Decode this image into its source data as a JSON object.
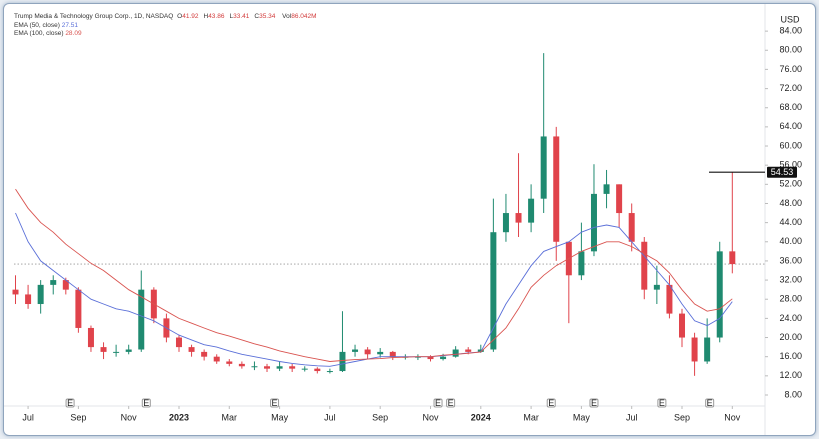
{
  "chart_data": {
    "type": "candlestick",
    "header": {
      "symbol": "Trump Media & Technology Group Corp., 1D, NASDAQ",
      "ohlc": [
        {
          "label": "O",
          "value": 41.92
        },
        {
          "label": "H",
          "value": 43.86
        },
        {
          "label": "L",
          "value": 33.41
        },
        {
          "label": "C",
          "value": 35.34
        }
      ],
      "volume_label": "Vol",
      "volume": "86.042M"
    },
    "y_unit": "USD",
    "x": [
      -0.5,
      0,
      0.5,
      1,
      1.5,
      2,
      2.5,
      3,
      3.5,
      4,
      4.5,
      5,
      5.5,
      6,
      6.5,
      7,
      7.5,
      8,
      8.5,
      9,
      9.5,
      10,
      10.5,
      11,
      11.5,
      12,
      12.5,
      13,
      13.5,
      14,
      14.5,
      15,
      15.5,
      16,
      16.5,
      17,
      17.5,
      18,
      18.5,
      19,
      19.5,
      20,
      20.5,
      21,
      21.5,
      22,
      22.5,
      23,
      23.5,
      24,
      24.5,
      25,
      25.5,
      26,
      26.5,
      27,
      27.5,
      28
    ],
    "open": [
      30,
      29,
      27,
      31,
      32,
      30,
      22,
      18,
      17,
      17,
      17.5,
      30,
      24,
      20,
      18,
      17,
      16,
      15,
      14.5,
      14,
      14,
      13.5,
      14,
      13.5,
      13.5,
      13,
      13,
      17,
      17.5,
      16.5,
      17,
      16,
      16,
      16,
      15.5,
      16,
      17.5,
      17,
      17.5,
      42,
      46,
      44,
      49,
      62,
      40,
      33,
      38,
      50,
      52,
      46,
      40,
      30,
      31,
      25,
      20,
      15,
      20,
      38
    ],
    "high": [
      33,
      31,
      32,
      33,
      32.5,
      30.5,
      22.5,
      19,
      18.5,
      18.5,
      34,
      30.5,
      25,
      20.5,
      18.5,
      17.5,
      16.5,
      15.5,
      15,
      15,
      14.5,
      15,
      14.5,
      14,
      13.8,
      13.5,
      25.5,
      18.5,
      18,
      17.8,
      17.2,
      16.5,
      16.5,
      16.3,
      16.6,
      18.2,
      18,
      18.5,
      49,
      50,
      58.5,
      52,
      79.4,
      64,
      40,
      44,
      56.2,
      55,
      52,
      48,
      41,
      35,
      33,
      26,
      21,
      24,
      40,
      54.5
    ],
    "low": [
      27,
      26,
      25,
      29,
      29,
      21,
      17,
      15.5,
      16,
      16.5,
      17,
      23,
      19,
      17,
      16,
      15.2,
      14.5,
      14,
      13.5,
      13.2,
      12.8,
      13,
      12.8,
      12.9,
      12.5,
      12.5,
      12.8,
      16,
      15.5,
      15.8,
      15.3,
      15.4,
      15.3,
      15,
      15.2,
      15.8,
      16.5,
      16.8,
      17,
      40,
      41,
      42,
      46,
      36,
      23,
      32,
      37,
      47,
      43,
      38,
      28,
      27,
      24,
      18,
      12,
      14.5,
      19,
      33.41
    ],
    "close": [
      29,
      27,
      31,
      32,
      30,
      22,
      18,
      17,
      17,
      17.5,
      30,
      24,
      20,
      18,
      17,
      16,
      15,
      14.5,
      14,
      14,
      13.5,
      14,
      13.5,
      13.5,
      13,
      13,
      17,
      17.5,
      16.5,
      17,
      16,
      16,
      16,
      15.5,
      16,
      17.5,
      17,
      17.5,
      42,
      46,
      44,
      49,
      62,
      40,
      33,
      38,
      50,
      52,
      46,
      40,
      30,
      31,
      25,
      20,
      15,
      20,
      38,
      35.34
    ],
    "up_color": "#1f8a70",
    "down_color": "#e0434b",
    "series": [
      {
        "name": "EMA (50, close)",
        "color": "#5a6fd8",
        "last": 27.51,
        "values": [
          46,
          40,
          36,
          34,
          32,
          30,
          28,
          27,
          26,
          25.5,
          24.5,
          23.5,
          22,
          20.5,
          19.5,
          18.5,
          18,
          17.2,
          16.5,
          16,
          15.5,
          15,
          14.6,
          14.3,
          14.1,
          14,
          14.5,
          15,
          15.5,
          16,
          16,
          16,
          16,
          16,
          16.2,
          16.5,
          16.8,
          17,
          22,
          27,
          31,
          35,
          38,
          39,
          40,
          42,
          43,
          43.5,
          43,
          40,
          37,
          34,
          31,
          27,
          23.5,
          22.5,
          24,
          27.51
        ]
      },
      {
        "name": "EMA (100, close)",
        "color": "#d9534f",
        "last": 28.09,
        "values": [
          51,
          47,
          44,
          42,
          39.5,
          37.5,
          35.5,
          34,
          32,
          30,
          28.5,
          27,
          25.5,
          24,
          23,
          22,
          21,
          20.3,
          19.5,
          18.7,
          18,
          17.2,
          16.6,
          16,
          15.5,
          15,
          15.2,
          15.4,
          15.5,
          15.6,
          15.8,
          15.9,
          16,
          16,
          16.3,
          16.5,
          16.7,
          17,
          19.5,
          22,
          26,
          30.5,
          33,
          35,
          36.5,
          38,
          39,
          40,
          40,
          39,
          37.5,
          36,
          33.5,
          30,
          27,
          25.5,
          26,
          28.09
        ]
      }
    ],
    "price_marker": 54.53,
    "events": {
      "label": "E",
      "x": [
        1.67,
        4.7,
        9.8,
        16.3,
        16.8,
        20.8,
        22.5,
        25.2,
        27.1
      ]
    },
    "xlim": [
      -0.56,
      29.3
    ],
    "xticks": [
      {
        "value": 0,
        "label": "Jul"
      },
      {
        "value": 2,
        "label": "Sep"
      },
      {
        "value": 4,
        "label": "Nov"
      },
      {
        "value": 6,
        "label": "2023"
      },
      {
        "value": 8,
        "label": "Mar"
      },
      {
        "value": 10,
        "label": "May"
      },
      {
        "value": 12,
        "label": "Jul"
      },
      {
        "value": 14,
        "label": "Sep"
      },
      {
        "value": 16,
        "label": "Nov"
      },
      {
        "value": 18,
        "label": "2024"
      },
      {
        "value": 20,
        "label": "Mar"
      },
      {
        "value": 22,
        "label": "May"
      },
      {
        "value": 24,
        "label": "Jul"
      },
      {
        "value": 26,
        "label": "Sep"
      },
      {
        "value": 28,
        "label": "Nov"
      }
    ],
    "ylim": [
      5.7,
      88.2
    ],
    "yticks": [
      {
        "value": 8,
        "label": "8.00"
      },
      {
        "value": 12,
        "label": "12.00"
      },
      {
        "value": 16,
        "label": "16.00"
      },
      {
        "value": 20,
        "label": "20.00"
      },
      {
        "value": 24,
        "label": "24.00"
      },
      {
        "value": 28,
        "label": "28.00"
      },
      {
        "value": 32,
        "label": "32.00"
      },
      {
        "value": 36,
        "label": "36.00"
      },
      {
        "value": 40,
        "label": "40.00"
      },
      {
        "value": 44,
        "label": "44.00"
      },
      {
        "value": 48,
        "label": "48.00"
      },
      {
        "value": 52,
        "label": "52.00"
      },
      {
        "value": 56,
        "label": "56.00"
      },
      {
        "value": 60,
        "label": "60.00"
      },
      {
        "value": 64,
        "label": "64.00"
      },
      {
        "value": 68,
        "label": "68.00"
      },
      {
        "value": 72,
        "label": "72.00"
      },
      {
        "value": 76,
        "label": "76.00"
      },
      {
        "value": 80,
        "label": "80.00"
      },
      {
        "value": 84,
        "label": "84.00"
      }
    ]
  }
}
